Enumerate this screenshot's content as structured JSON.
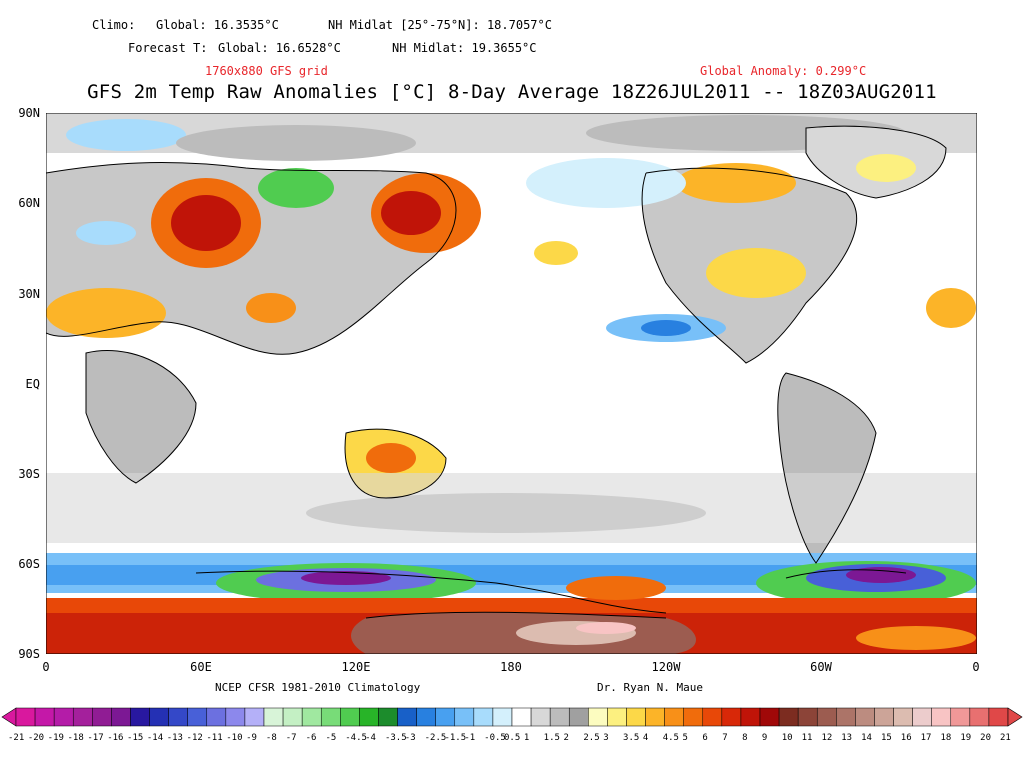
{
  "header": {
    "climo_label": "Climo:",
    "climo_global": "Global: 16.3535°C",
    "climo_nh": "NH Midlat [25°-75°N]: 18.7057°C",
    "forecast_label": "Forecast T:",
    "forecast_global": "Global: 16.6528°C",
    "forecast_nh": "NH Midlat: 19.3655°C",
    "grid_note": "1760x880 GFS grid",
    "global_anomaly": "Global Anomaly: 0.299°C",
    "title": "GFS 2m Temp Raw Anomalies [°C] 8-Day Average 18Z26JUL2011 -- 18Z03AUG2011"
  },
  "axes": {
    "lat_labels": [
      "90N",
      "60N",
      "30N",
      "EQ",
      "30S",
      "60S",
      "90S"
    ],
    "lon_labels": [
      "0",
      "60E",
      "120E",
      "180",
      "120W",
      "60W",
      "0"
    ]
  },
  "footer": {
    "climatology": "NCEP CFSR 1981-2010 Climatology",
    "author": "Dr. Ryan N. Maue"
  },
  "colorbar": {
    "labels": [
      "-21",
      "-20",
      "-19",
      "-18",
      "-17",
      "-16",
      "-15",
      "-14",
      "-13",
      "-12",
      "-11",
      "-10",
      "-9",
      "-8",
      "-7",
      "-6",
      "-5",
      "-4.5",
      "-4",
      "-3.5",
      "-3",
      "-2.5",
      "-1.5",
      "-1",
      "-0.5",
      "0.5",
      "1",
      "1.5",
      "2",
      "2.5",
      "3",
      "3.5",
      "4",
      "4.5",
      "5",
      "6",
      "7",
      "8",
      "9",
      "10",
      "11",
      "12",
      "13",
      "14",
      "15",
      "16",
      "17",
      "18",
      "19",
      "20",
      "21"
    ],
    "colors": [
      "#d9189e",
      "#c418a8",
      "#b41ca8",
      "#a4209c",
      "#901c94",
      "#7c1894",
      "#2818a0",
      "#2430b4",
      "#3448c8",
      "#4860d8",
      "#6c70e0",
      "#8c88ec",
      "#b4b0f8",
      "#d8f4d8",
      "#c4f0c4",
      "#a0e8a0",
      "#78dc78",
      "#50cc50",
      "#28b428",
      "#1c8c2c",
      "#1860c8",
      "#2880e0",
      "#48a0f0",
      "#78c0f8",
      "#a8dcfc",
      "#d4f0fc",
      "#ffffff",
      "#d8d8d8",
      "#bcbcbc",
      "#a0a0a0",
      "#fcfcc0",
      "#fcf080",
      "#fcd848",
      "#fcb428",
      "#f89018",
      "#f06c0c",
      "#e84808",
      "#d82808",
      "#c01408",
      "#a00808",
      "#7c2c20",
      "#8c4438",
      "#9c5c50",
      "#ac7468",
      "#bc8c80",
      "#cca498",
      "#dcbcb0",
      "#eccccc",
      "#f8c4c4",
      "#f09898",
      "#e87070",
      "#e04848"
    ]
  }
}
